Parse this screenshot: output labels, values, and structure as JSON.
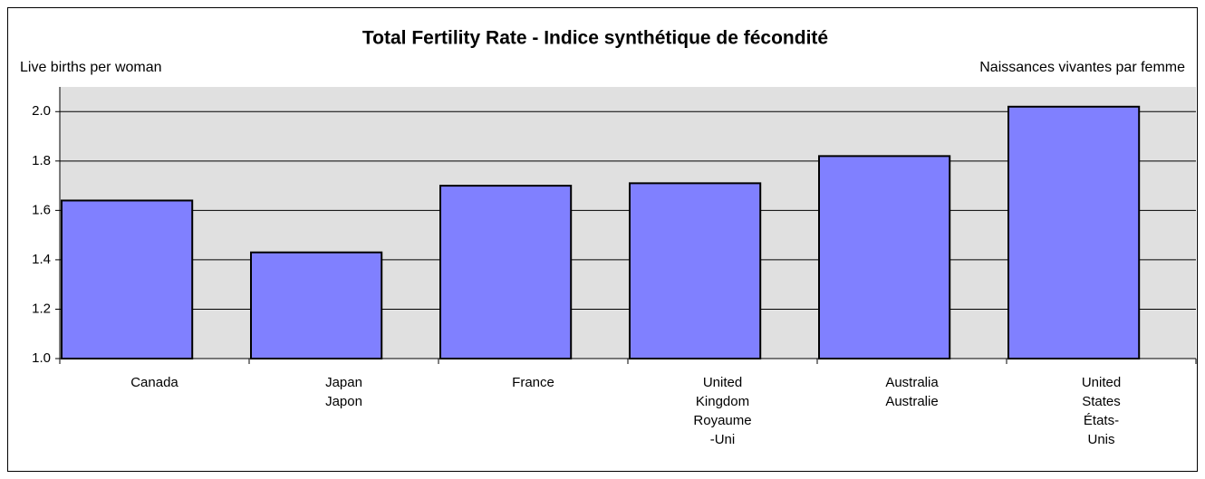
{
  "chart_data": {
    "type": "bar",
    "title": "Total Fertility Rate - Indice synthétique de fécondité",
    "y_label_left": "Live births per woman",
    "y_label_right": "Naissances vivantes par femme",
    "categories": [
      [
        "Canada"
      ],
      [
        "Japan",
        "Japon"
      ],
      [
        "France"
      ],
      [
        "United",
        "Kingdom",
        "Royaume",
        "-Uni"
      ],
      [
        "Australia",
        "Australie"
      ],
      [
        "United",
        "States",
        "États-",
        "Unis"
      ]
    ],
    "values": [
      1.64,
      1.43,
      1.7,
      1.71,
      1.82,
      2.02
    ],
    "color": "#8080ff",
    "ylim": [
      1.0,
      2.1
    ],
    "yticks": [
      {
        "value": 1.0,
        "label": "1.0"
      },
      1.2,
      1.4,
      1.6,
      1.8,
      {
        "value": 2.0,
        "label": "2.0"
      }
    ],
    "grid": true
  }
}
